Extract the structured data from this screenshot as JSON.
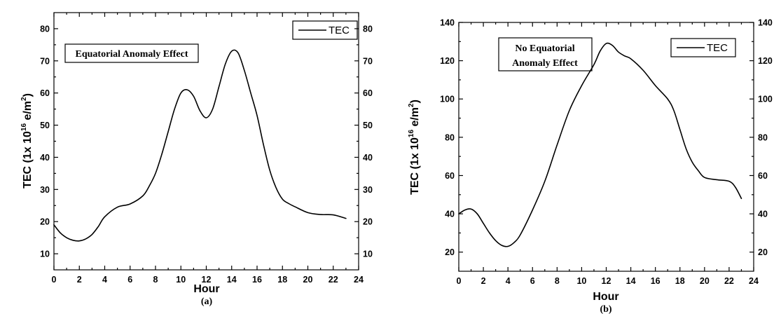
{
  "chart_data": [
    {
      "type": "line",
      "panel_label": "(a)",
      "xlabel": "Hour",
      "ylabel": "TEC (1x 10",
      "ylabel_sup1": "16",
      "ylabel_mid": " e/m",
      "ylabel_sup2": "2",
      "ylabel_end": ")",
      "annotation": [
        "Equatorial Anomaly Effect"
      ],
      "legend": "TEC",
      "legend_position": "top-right",
      "grid": false,
      "xlim": [
        0,
        24
      ],
      "ylim": [
        5,
        85
      ],
      "x_ticks": [
        0,
        2,
        4,
        6,
        8,
        10,
        12,
        14,
        16,
        18,
        20,
        22,
        24
      ],
      "y_ticks": [
        10,
        20,
        30,
        40,
        50,
        60,
        70,
        80
      ],
      "series": [
        {
          "name": "TEC",
          "x": [
            0,
            0.5,
            1,
            1.5,
            2,
            2.5,
            3,
            3.5,
            4,
            5,
            6,
            7,
            7.5,
            8,
            8.5,
            9,
            9.5,
            10,
            10.5,
            11,
            11.5,
            12,
            12.5,
            13,
            13.5,
            14,
            14.5,
            15,
            15.5,
            16,
            16.5,
            17,
            17.5,
            18,
            18.5,
            19,
            20,
            21,
            22,
            23
          ],
          "y": [
            19,
            16.5,
            15,
            14.2,
            14,
            14.6,
            16,
            18.5,
            21.5,
            24.5,
            25.5,
            28,
            31,
            35,
            41,
            48,
            55,
            60,
            61,
            59,
            54.5,
            52.3,
            55,
            62,
            69,
            73,
            72.5,
            67,
            60,
            53,
            44,
            36,
            30.5,
            27,
            25.6,
            24.6,
            22.8,
            22.2,
            22.1,
            21
          ]
        }
      ]
    },
    {
      "type": "line",
      "panel_label": "(b)",
      "xlabel": "Hour",
      "ylabel": "TEC (1x 10",
      "ylabel_sup1": "16",
      "ylabel_mid": " e/m",
      "ylabel_sup2": "2",
      "ylabel_end": ")",
      "annotation": [
        "No Equatorial",
        "Anomaly Effect"
      ],
      "legend": "TEC",
      "legend_position": "top-right",
      "grid": false,
      "xlim": [
        0,
        24
      ],
      "ylim": [
        10,
        140
      ],
      "x_ticks": [
        0,
        2,
        4,
        6,
        8,
        10,
        12,
        14,
        16,
        18,
        20,
        22,
        24
      ],
      "y_ticks": [
        20,
        40,
        60,
        80,
        100,
        120,
        140
      ],
      "series": [
        {
          "name": "TEC",
          "x": [
            0,
            0.5,
            1,
            1.5,
            2,
            2.5,
            3,
            3.5,
            4,
            4.5,
            5,
            6,
            7,
            8,
            9,
            10,
            11,
            11.5,
            12,
            12.5,
            13,
            13.5,
            14,
            15,
            16,
            17,
            17.5,
            18,
            18.5,
            19,
            19.5,
            20,
            21,
            22,
            22.5,
            23
          ],
          "y": [
            40,
            42,
            42.5,
            40,
            35,
            30,
            26,
            23.5,
            23,
            25,
            29,
            42,
            57,
            76,
            94,
            107,
            118,
            125,
            129,
            128,
            124.5,
            122.5,
            121,
            115,
            107,
            100,
            94,
            84,
            74,
            67,
            62.5,
            59,
            57.8,
            57,
            54,
            48
          ]
        }
      ]
    }
  ]
}
